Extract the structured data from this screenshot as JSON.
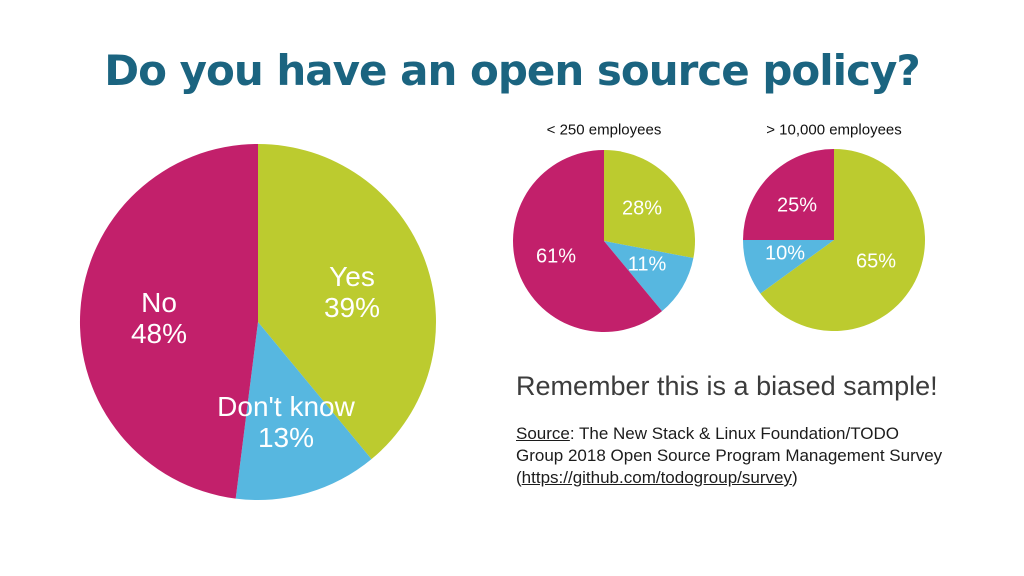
{
  "slide": {
    "title": "Do you have an open source policy?",
    "note": "Remember this is a biased sample!",
    "source": {
      "label": "Source",
      "after_label": ": The New Stack & Linux Foundation/TODO Group 2018 Open Source Program Management Survey (",
      "url": "https://github.com/todogroup/survey",
      "closing": ")"
    },
    "colors": {
      "title_teal": "#1B6480",
      "yes_green": "#BCCB2F",
      "dont_know_blue": "#57B7E0",
      "no_magenta": "#C2206B",
      "label_text": "#FFFFFF"
    }
  },
  "chart_data": [
    {
      "id": "overall",
      "type": "pie",
      "start_angle_deg": 0,
      "direction": "clockwise",
      "legend_position": "none",
      "slices": [
        {
          "label": "Yes",
          "value": 39,
          "color": "#BCCB2F",
          "display": {
            "name": "Yes",
            "pct": "39%"
          }
        },
        {
          "label": "Don't know",
          "value": 13,
          "color": "#57B7E0",
          "display": {
            "name": "Don't know",
            "pct": "13%"
          }
        },
        {
          "label": "No",
          "value": 48,
          "color": "#C2206B",
          "display": {
            "name": "No",
            "pct": "48%"
          }
        }
      ]
    },
    {
      "id": "lt-250",
      "type": "pie",
      "title": "< 250 employees",
      "start_angle_deg": 0,
      "direction": "clockwise",
      "legend_position": "none",
      "slices": [
        {
          "label": "Yes",
          "value": 28,
          "color": "#BCCB2F",
          "pct_label": "28%"
        },
        {
          "label": "Don't know",
          "value": 11,
          "color": "#57B7E0",
          "pct_label": "11%"
        },
        {
          "label": "No",
          "value": 61,
          "color": "#C2206B",
          "pct_label": "61%"
        }
      ]
    },
    {
      "id": "gt-10000",
      "type": "pie",
      "title": "> 10,000 employees",
      "start_angle_deg": 0,
      "direction": "clockwise",
      "legend_position": "none",
      "slices": [
        {
          "label": "Yes",
          "value": 65,
          "color": "#BCCB2F",
          "pct_label": "65%"
        },
        {
          "label": "Don't know",
          "value": 10,
          "color": "#57B7E0",
          "pct_label": "10%"
        },
        {
          "label": "No",
          "value": 25,
          "color": "#C2206B",
          "pct_label": "25%"
        }
      ]
    }
  ]
}
